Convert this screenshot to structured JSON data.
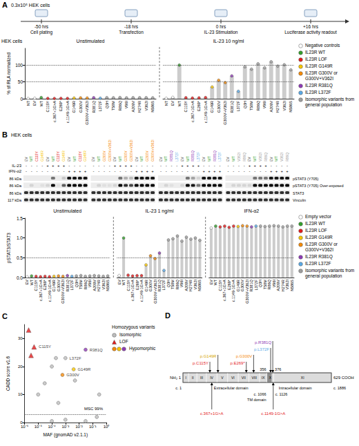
{
  "schematic": {
    "letter": "A",
    "cells": "0.3x10⁵ HEK cells",
    "steps": [
      {
        "time": "-50 hrs",
        "label": "Cell plating"
      },
      {
        "time": "-18 hrs",
        "label": "Transfection"
      },
      {
        "time": "0 hrs",
        "label": "IL-23 Stimulation"
      },
      {
        "time": "+16 hrs",
        "label": "Luciferase activity readout"
      }
    ]
  },
  "chart_data": [
    {
      "type": "bar",
      "cell_line": "HEK cells",
      "ylabel": "% of RLA normalized",
      "ylim": [
        0,
        150
      ],
      "yticks": [
        0,
        50,
        100
      ],
      "ref_lines": [
        50,
        100
      ],
      "grid": false,
      "legend": "right",
      "legend_items": [
        {
          "name": "Negative controls",
          "color": "#ffffff"
        },
        {
          "name": "IL23R WT",
          "color": "#33a02c"
        },
        {
          "name": "IL23R LOF",
          "color": "#e31a1c"
        },
        {
          "name": "IL23R G149R",
          "color": "#f7c600"
        },
        {
          "name": "IL23R G300V or G300V+V362I",
          "color": "#f58a07"
        },
        {
          "name": "IL23R R381Q",
          "color": "#8e3bb5"
        },
        {
          "name": "IL23R L372F",
          "color": "#5aa9e6"
        },
        {
          "name": "Isomorphic variants from general population",
          "color": "#9e9e9e"
        }
      ],
      "sections": [
        {
          "title": "Unstimulated",
          "categories": [
            "NT",
            "EV",
            "WT",
            "C115Y",
            "c.367+1G>A",
            "E269*",
            "c.1149-1G>A",
            "G149R",
            "G300V",
            "G300V+V362I",
            "R381Q",
            "L372F",
            "Q3H",
            "T58M",
            "R86Q",
            "V96I",
            "A209V",
            "H274R",
            "V362I",
            "N586S"
          ],
          "values": [
            0.5,
            1.2,
            3.5,
            1.0,
            0.8,
            1.1,
            0.9,
            2.0,
            2.5,
            2.2,
            3.0,
            1.5,
            3.2,
            2.8,
            3.5,
            2.6,
            3.0,
            2.9,
            3.1,
            2.7
          ],
          "colors": [
            "#ffffff",
            "#ffffff",
            "#33a02c",
            "#e31a1c",
            "#e31a1c",
            "#e31a1c",
            "#e31a1c",
            "#f7c600",
            "#f58a07",
            "#f58a07",
            "#8e3bb5",
            "#5aa9e6",
            "#9e9e9e",
            "#9e9e9e",
            "#9e9e9e",
            "#9e9e9e",
            "#9e9e9e",
            "#9e9e9e",
            "#9e9e9e",
            "#9e9e9e"
          ]
        },
        {
          "title": "IL-23 10 ng/ml",
          "categories": [
            "NT",
            "EV",
            "WT",
            "C115Y",
            "c.367+1G>A",
            "E269*",
            "c.1149-1G>A",
            "G149R",
            "G300V",
            "G300V+V362I",
            "R381Q",
            "L372F",
            "Q3H",
            "T58M",
            "R86Q",
            "V96I",
            "A209V",
            "H274R",
            "V362I",
            "N586S"
          ],
          "values": [
            1.0,
            4.0,
            100,
            3.0,
            2.0,
            2.5,
            3.5,
            35,
            55,
            48,
            68,
            22,
            95,
            88,
            104,
            92,
            110,
            97,
            101,
            86
          ],
          "colors": [
            "#ffffff",
            "#ffffff",
            "#33a02c",
            "#e31a1c",
            "#e31a1c",
            "#e31a1c",
            "#e31a1c",
            "#f7c600",
            "#f58a07",
            "#f58a07",
            "#8e3bb5",
            "#5aa9e6",
            "#9e9e9e",
            "#9e9e9e",
            "#9e9e9e",
            "#9e9e9e",
            "#9e9e9e",
            "#9e9e9e",
            "#9e9e9e",
            "#9e9e9e"
          ]
        }
      ]
    },
    {
      "type": "bar",
      "ylabel": "pSTAT3/STAT3",
      "ylim": [
        0,
        1.5
      ],
      "yticks": [
        {
          "value": 0,
          "label": "0.0"
        },
        {
          "value": 0.5,
          "label": "0.5"
        },
        {
          "value": 1,
          "label": "1.0"
        },
        {
          "value": 1.5,
          "label": "1.5"
        }
      ],
      "ref_lines": [
        0.5
      ],
      "grid": false,
      "legend": "right",
      "legend_items": [
        {
          "name": "Empty vector",
          "color": "#ffffff"
        },
        {
          "name": "IL23R WT",
          "color": "#33a02c"
        },
        {
          "name": "IL23R LOF",
          "color": "#e31a1c"
        },
        {
          "name": "IL23R G149R",
          "color": "#f7c600"
        },
        {
          "name": "IL23R G300V or G300V+V362I",
          "color": "#f58a07"
        },
        {
          "name": "IL23R R381Q",
          "color": "#8e3bb5"
        },
        {
          "name": "IL23R L372F",
          "color": "#5aa9e6"
        },
        {
          "name": "Isomorphic variants from general population",
          "color": "#9e9e9e"
        }
      ],
      "sections": [
        {
          "title": "Unstimulated",
          "categories": [
            "EV",
            "WT",
            "C115Y",
            "c.367+1G>A",
            "E269*",
            "c.1149-1G>A",
            "G149R",
            "G300V",
            "G300V+V362I",
            "R381Q",
            "L372F",
            "Q3H",
            "T58M",
            "R86Q",
            "V96I",
            "A209V",
            "H274R",
            "V362I",
            "N586S"
          ],
          "values": [
            0.02,
            0.04,
            0.03,
            0.02,
            0.03,
            0.02,
            0.03,
            0.04,
            0.03,
            0.05,
            0.03,
            0.04,
            0.05,
            0.03,
            0.04,
            0.05,
            0.04,
            0.03,
            0.04
          ],
          "colors": [
            "#ffffff",
            "#33a02c",
            "#e31a1c",
            "#e31a1c",
            "#e31a1c",
            "#e31a1c",
            "#f7c600",
            "#f58a07",
            "#f58a07",
            "#8e3bb5",
            "#5aa9e6",
            "#9e9e9e",
            "#9e9e9e",
            "#9e9e9e",
            "#9e9e9e",
            "#9e9e9e",
            "#9e9e9e",
            "#9e9e9e",
            "#9e9e9e"
          ]
        },
        {
          "title": "IL-23 1 ng/ml",
          "categories": [
            "EV",
            "WT",
            "C115Y",
            "c.367+1G>A",
            "E269*",
            "c.1149-1G>A",
            "G149R",
            "G300V",
            "G300V+V362I",
            "R381Q",
            "L372F",
            "Q3H",
            "T58M",
            "R86Q",
            "V96I",
            "A209V",
            "H274R",
            "V362I",
            "N586S"
          ],
          "values": [
            0.05,
            1.0,
            0.06,
            0.04,
            0.05,
            0.05,
            0.32,
            0.55,
            0.48,
            0.62,
            0.18,
            0.95,
            0.98,
            1.05,
            0.92,
            1.02,
            0.97,
            1.0,
            0.94
          ],
          "colors": [
            "#ffffff",
            "#33a02c",
            "#e31a1c",
            "#e31a1c",
            "#e31a1c",
            "#e31a1c",
            "#f7c600",
            "#f58a07",
            "#f58a07",
            "#8e3bb5",
            "#5aa9e6",
            "#9e9e9e",
            "#9e9e9e",
            "#9e9e9e",
            "#9e9e9e",
            "#9e9e9e",
            "#9e9e9e",
            "#9e9e9e",
            "#9e9e9e"
          ]
        },
        {
          "title": "IFN-α2",
          "categories": [
            "EV",
            "WT",
            "C115Y",
            "c.367+1G>A",
            "E269*",
            "c.1149-1G>A",
            "G149R",
            "G300V",
            "G300V+V362I",
            "R381Q",
            "L372F",
            "Q3H",
            "T58M",
            "R86Q",
            "V96I",
            "A209V",
            "H274R",
            "V362I",
            "N586S"
          ],
          "values": [
            1.25,
            1.3,
            1.28,
            1.3,
            1.27,
            1.3,
            1.29,
            1.31,
            1.3,
            1.28,
            1.3,
            1.3,
            1.29,
            1.3,
            1.31,
            1.3,
            1.28,
            1.3,
            1.3
          ],
          "colors": [
            "#ffffff",
            "#33a02c",
            "#e31a1c",
            "#e31a1c",
            "#e31a1c",
            "#e31a1c",
            "#f7c600",
            "#f58a07",
            "#f58a07",
            "#8e3bb5",
            "#5aa9e6",
            "#9e9e9e",
            "#9e9e9e",
            "#9e9e9e",
            "#9e9e9e",
            "#9e9e9e",
            "#9e9e9e",
            "#9e9e9e",
            "#9e9e9e"
          ]
        }
      ]
    },
    {
      "type": "scatter",
      "letter": "C",
      "xlabel": "MAF (gnomAD v2.1.1)",
      "ylabel": "CADD score v1.6",
      "log": "x",
      "xlim": [
        1e-06,
        1
      ],
      "xticks": [
        {
          "value": 1e-06,
          "label": "10⁻⁶"
        },
        {
          "value": 1e-05,
          "label": "10⁻⁵"
        },
        {
          "value": 0.0001,
          "label": "10⁻⁴"
        },
        {
          "value": 0.001,
          "label": "10⁻³"
        },
        {
          "value": 0.01,
          "label": "10⁻²"
        },
        {
          "value": 0.1,
          "label": "10⁻¹"
        },
        {
          "value": 1,
          "label": "10⁰"
        }
      ],
      "ylim": [
        0,
        35
      ],
      "yticks": [
        0,
        10,
        20,
        30
      ],
      "grid": false,
      "legend": "right",
      "legend_title": "Homozygous variants",
      "ref_lines": [
        {
          "value": 3,
          "label": "MSC 99%"
        }
      ],
      "series": [
        {
          "name": "Isomorphic",
          "marker": "circle",
          "color": "#bdbdbd",
          "x": [
            1e-05,
            3e-05,
            0.0001,
            0.0002,
            0.0003,
            0.0001,
            0.001,
            0.001,
            0.005,
            0.03,
            0.2,
            0.3
          ],
          "y": [
            10,
            14,
            20,
            23,
            7,
            0.5,
            23,
            1,
            15,
            0.5,
            2,
            10
          ],
          "labels": [
            null,
            null,
            null,
            null,
            null,
            null,
            "L372F",
            null,
            null,
            null,
            null,
            null
          ]
        },
        {
          "name": "LOF",
          "marker": "triangle",
          "color": "#e31a1c",
          "x": [
            2e-06,
            5e-06,
            3e-06
          ],
          "y": [
            33,
            27,
            24
          ],
          "labels": [
            null,
            "C115Y",
            null
          ]
        },
        {
          "name": "Hypomorphic",
          "marker": "circle",
          "colors": [
            "#f58a07",
            "#f7c600",
            "#8e3bb5"
          ],
          "x": [
            0.0006,
            0.004,
            0.03
          ],
          "y": [
            17,
            19,
            26
          ],
          "labels": [
            "G300V",
            "G149R",
            "R381Q"
          ]
        }
      ]
    }
  ],
  "blot": {
    "letter": "B",
    "cell_line": "HEK cells",
    "condition_labels": [
      "IL-23",
      "IFN-α2"
    ],
    "conditions": [
      [
        "-",
        "-",
        "-",
        "-",
        "+",
        "+",
        "+",
        "+",
        "-",
        "-",
        "-",
        "-"
      ],
      [
        "-",
        "-",
        "-",
        "-",
        "-",
        "-",
        "-",
        "-",
        "+",
        "+",
        "+",
        "+"
      ]
    ],
    "blocks": [
      {
        "lanes": [
          "EV",
          "WT",
          "C115Y",
          "G149R"
        ],
        "colors": [
          "#ffffff",
          "#33a02c",
          "#e31a1c",
          "#f7c600"
        ]
      },
      {
        "lanes": [
          "EV",
          "WT",
          "G300V",
          "G300V+V362I"
        ],
        "colors": [
          "#ffffff",
          "#33a02c",
          "#f58a07",
          "#f58a07"
        ]
      },
      {
        "lanes": [
          "EV",
          "WT",
          "R381Q",
          "L372F"
        ],
        "colors": [
          "#ffffff",
          "#33a02c",
          "#8e3bb5",
          "#5aa9e6"
        ]
      },
      {
        "lanes": [
          "EV",
          "WT",
          "V362I",
          "R86Q"
        ],
        "colors": [
          "#ffffff",
          "#33a02c",
          "#9e9e9e",
          "#9e9e9e"
        ]
      }
    ],
    "rows": [
      {
        "name": "pSTAT3 (Y705)",
        "kda": "86 kDa",
        "intensity": [
          [
            0,
            0,
            0,
            0,
            0,
            0.5,
            0,
            0.15,
            0.9,
            0.9,
            0.9,
            0.9
          ],
          [
            0,
            0,
            0,
            0,
            0,
            0.5,
            0.25,
            0.2,
            0.9,
            0.9,
            0.9,
            0.9
          ],
          [
            0,
            0,
            0,
            0,
            0,
            0.5,
            0.3,
            0.1,
            0.9,
            0.9,
            0.9,
            0.9
          ],
          [
            0,
            0,
            0,
            0,
            0,
            0.5,
            0.5,
            0.5,
            0.9,
            0.9,
            0.9,
            0.9
          ]
        ]
      },
      {
        "name": "pSTAT3 (Y705) Over-exposed",
        "kda": "86 kDa",
        "intensity": [
          [
            0,
            0.1,
            0,
            0.05,
            0.1,
            1,
            0.05,
            0.6,
            1,
            1,
            1,
            1
          ],
          [
            0,
            0.1,
            0.05,
            0.05,
            0.1,
            1,
            0.8,
            0.7,
            1,
            1,
            1,
            1
          ],
          [
            0,
            0.1,
            0.05,
            0,
            0.1,
            1,
            0.9,
            0.5,
            1,
            1,
            1,
            1
          ],
          [
            0,
            0.1,
            0.1,
            0.1,
            0.1,
            1,
            1,
            1,
            1,
            1,
            1,
            1
          ]
        ]
      },
      {
        "name": "STAT3",
        "kda": "86 kDa",
        "intensity": [
          [
            0.8,
            0.8,
            0.8,
            0.8,
            0.8,
            0.8,
            0.8,
            0.8,
            0.8,
            0.8,
            0.8,
            0.8
          ],
          [
            0.8,
            0.8,
            0.8,
            0.8,
            0.8,
            0.8,
            0.8,
            0.8,
            0.8,
            0.8,
            0.8,
            0.8
          ],
          [
            0.8,
            0.8,
            0.8,
            0.8,
            0.8,
            0.8,
            0.8,
            0.8,
            0.8,
            0.8,
            0.8,
            0.8
          ],
          [
            0.8,
            0.8,
            0.8,
            0.8,
            0.8,
            0.8,
            0.8,
            0.8,
            0.8,
            0.8,
            0.8,
            0.8
          ]
        ]
      },
      {
        "name": "Vinculin",
        "kda": "117 kDa",
        "intensity": [
          [
            0.8,
            0.8,
            0.8,
            0.8,
            0.8,
            0.8,
            0.8,
            0.8,
            0.8,
            0.8,
            0.8,
            0.8
          ],
          [
            0.8,
            0.8,
            0.8,
            0.8,
            0.8,
            0.8,
            0.8,
            0.8,
            0.8,
            0.8,
            0.8,
            0.8
          ],
          [
            0.8,
            0.8,
            0.8,
            0.8,
            0.8,
            0.8,
            0.8,
            0.8,
            0.8,
            0.8,
            0.8,
            0.8
          ],
          [
            0.8,
            0.8,
            0.8,
            0.8,
            0.8,
            0.8,
            0.8,
            0.8,
            0.8,
            0.8,
            0.8,
            0.8
          ]
        ]
      }
    ]
  },
  "protein": {
    "letter": "D",
    "length": 629,
    "n_term": "NH₂ 1",
    "c_term": "629 COOH",
    "cdna_start": "c. 1",
    "cdna_end": "c. 1886",
    "exons": [
      {
        "label": "I",
        "start": 1
      },
      {
        "label": "II",
        "start": 25
      },
      {
        "label": "III",
        "start": 60
      },
      {
        "label": "IV",
        "start": 100
      },
      {
        "label": "V",
        "start": 145
      },
      {
        "label": "VI",
        "start": 190
      },
      {
        "label": "VII",
        "start": 235
      },
      {
        "label": "VIII",
        "start": 280
      },
      {
        "label": "IX",
        "start": 325
      },
      {
        "label": "X",
        "start": 356
      },
      {
        "label": "XI",
        "start": 385
      }
    ],
    "domains": [
      {
        "label": "Extracellular domain",
        "start": 1,
        "end": 356
      },
      {
        "label": "TM domain",
        "start": 356,
        "end": 376
      },
      {
        "label": "Intracellular domain",
        "start": 376,
        "end": 629
      }
    ],
    "boundaries": [
      {
        "position": 356,
        "label": "356",
        "cdna": "c. 1066"
      },
      {
        "position": 376,
        "label": "376",
        "cdna": "c. 1126"
      }
    ],
    "protein_variants": [
      {
        "label": "p.C115Y",
        "position": 115,
        "color": "#e31a1c"
      },
      {
        "label": "p.G149R",
        "position": 149,
        "color": "#d4a500"
      },
      {
        "label": "p.E269*",
        "position": 269,
        "color": "#e31a1c"
      },
      {
        "label": "p.G300V",
        "position": 300,
        "color": "#f58a07"
      },
      {
        "label": "p.L372F",
        "position": 372,
        "color": "#5aa9e6"
      },
      {
        "label": "p.R381Q",
        "position": 381,
        "color": "#8e3bb5"
      }
    ],
    "splice_variants": [
      {
        "label": "c.367+1G>A",
        "position": 123,
        "color": "#e31a1c"
      },
      {
        "label": "c.1149-1G>A",
        "position": 383,
        "color": "#e31a1c"
      }
    ]
  }
}
